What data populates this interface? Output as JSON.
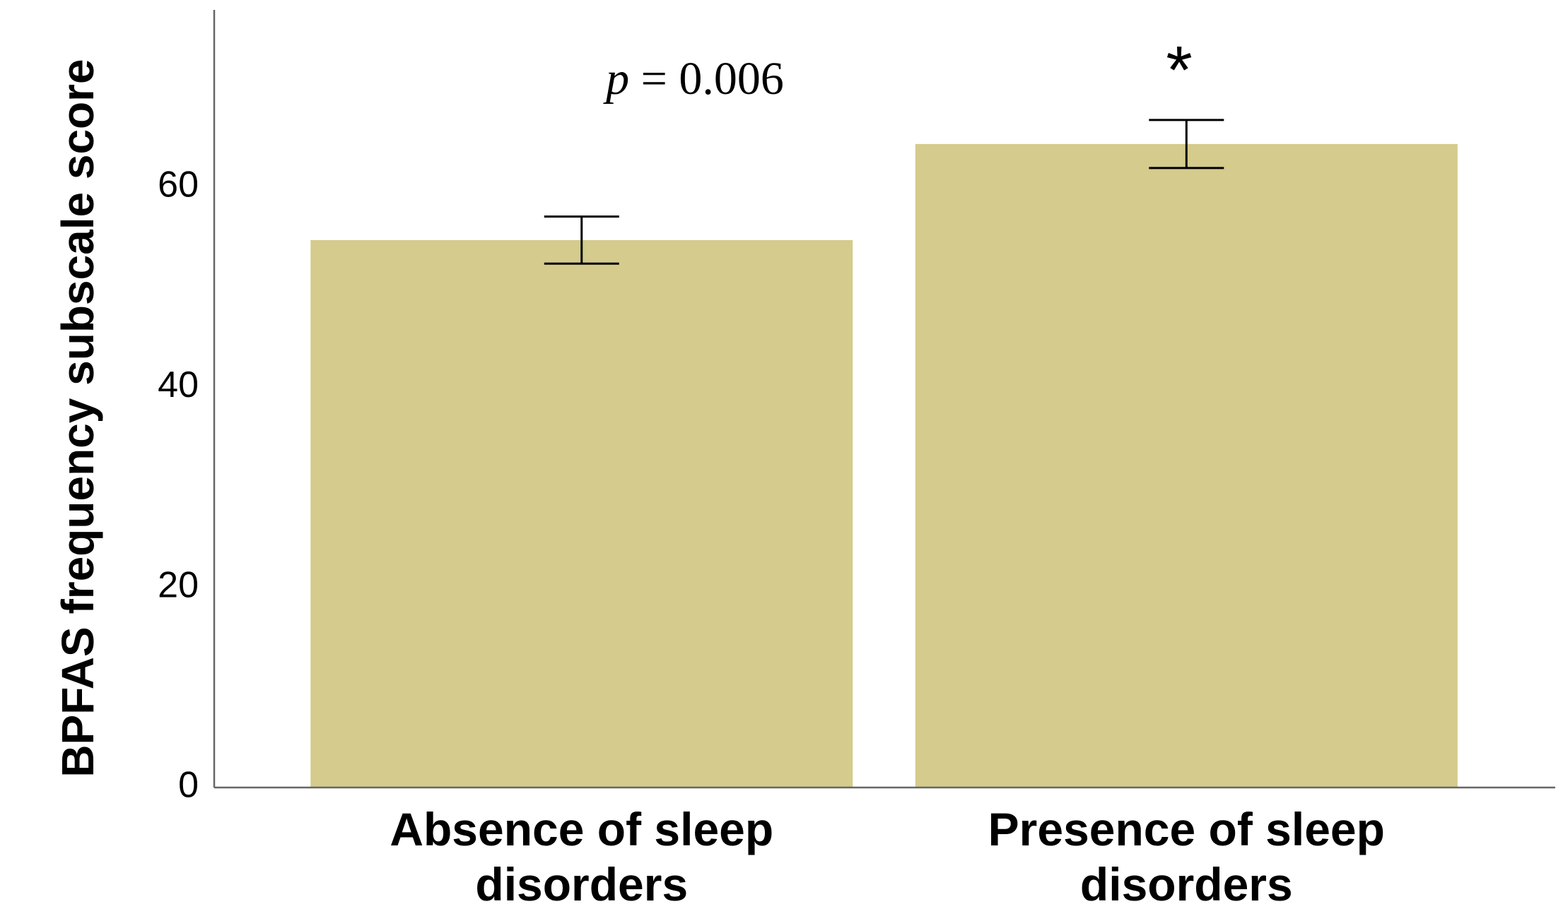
{
  "chart_data": {
    "type": "bar",
    "y_label": "BPFAS frequency subscale score",
    "categories": [
      "Absence of sleep disorders",
      "Presence of sleep disorders"
    ],
    "values": [
      54.7,
      64.3
    ],
    "errors": [
      2.35,
      2.4
    ],
    "color": "#d4cb8c",
    "ylim": [
      0,
      77.7
    ],
    "yticks": [
      0,
      20,
      40,
      60
    ],
    "grid": false,
    "annotations": [
      {
        "text": "p = 0.006"
      },
      {
        "text": "*"
      }
    ]
  }
}
